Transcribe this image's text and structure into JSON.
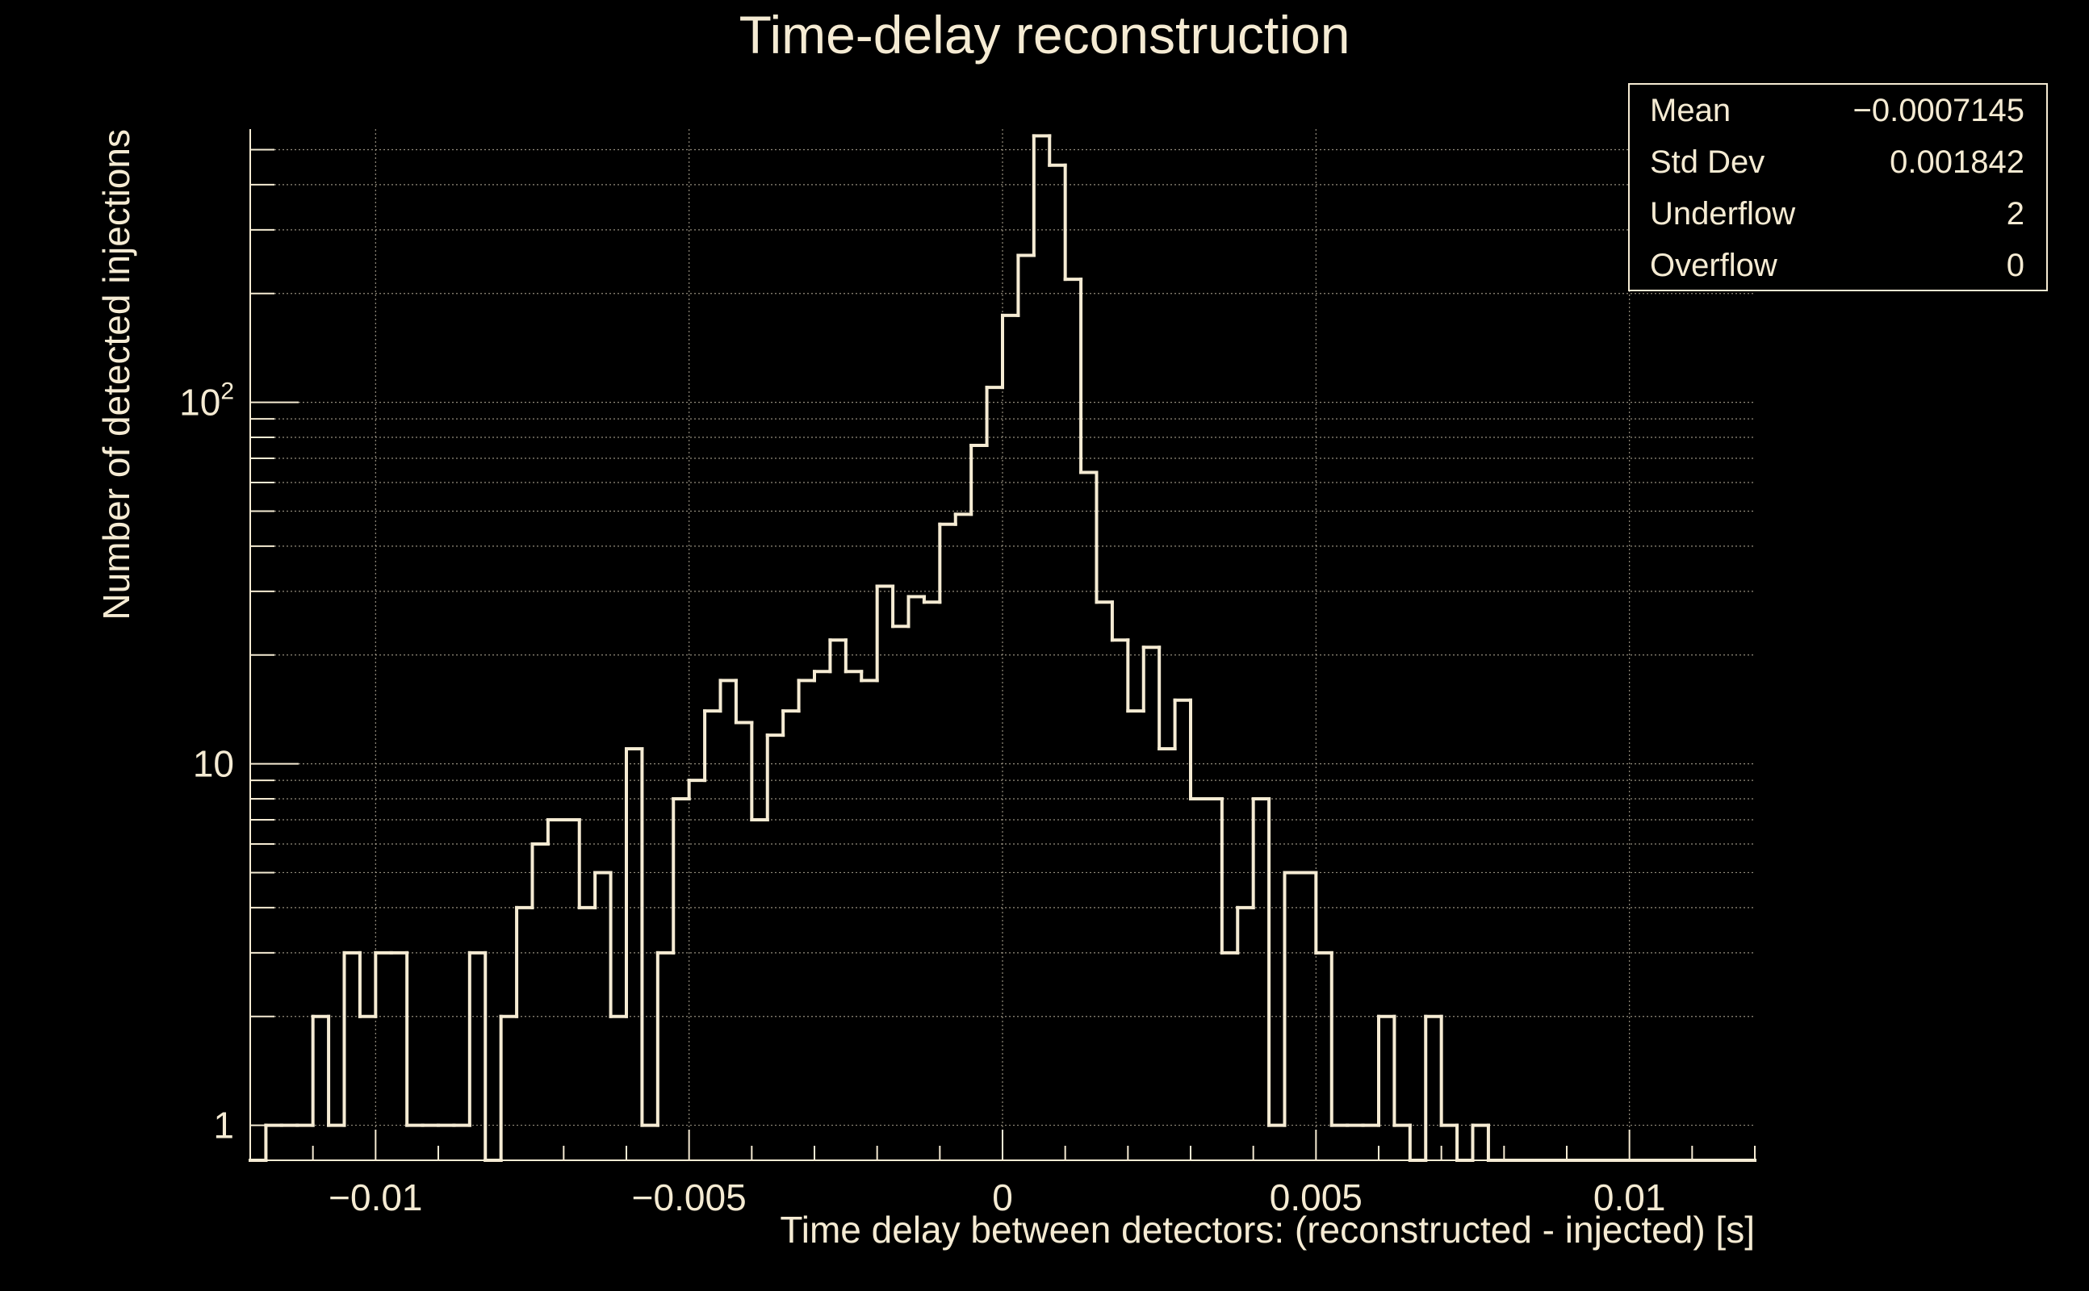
{
  "colors": {
    "background": "#000000",
    "foreground": "#f5ebd3",
    "grid": "#b8b09c"
  },
  "stats": {
    "rows": [
      {
        "label": "Mean",
        "value": "−0.0007145"
      },
      {
        "label": "Std Dev",
        "value": "0.001842"
      },
      {
        "label": "Underflow",
        "value": "2"
      },
      {
        "label": "Overflow",
        "value": "0"
      }
    ]
  },
  "chart_data": {
    "type": "histogram",
    "title": "Time-delay reconstruction",
    "xlabel": "Time delay between detectors: (reconstructed - injected) [s]",
    "ylabel": "Number of detected injections",
    "xlim": [
      -0.012,
      0.012
    ],
    "ylim": [
      0.8,
      570
    ],
    "log_y": true,
    "grid": true,
    "x_ticks": [
      {
        "value": -0.01,
        "label": "−0.01"
      },
      {
        "value": -0.005,
        "label": "−0.005"
      },
      {
        "value": 0,
        "label": "0"
      },
      {
        "value": 0.005,
        "label": "0.005"
      },
      {
        "value": 0.01,
        "label": "0.01"
      }
    ],
    "y_ticks": [
      {
        "value": 1,
        "label": "1"
      },
      {
        "value": 10,
        "label": "10"
      },
      {
        "value": 100,
        "label": "10",
        "sup": "2"
      }
    ],
    "bin_start": -0.012,
    "bin_width": 0.00025,
    "counts": [
      0,
      1,
      1,
      1,
      2,
      1,
      3,
      2,
      3,
      3,
      1,
      1,
      1,
      1,
      3,
      0,
      2,
      4,
      6,
      7,
      7,
      4,
      5,
      2,
      11,
      1,
      3,
      8,
      9,
      14,
      17,
      13,
      7,
      12,
      14,
      17,
      18,
      22,
      18,
      17,
      31,
      24,
      29,
      28,
      46,
      49,
      76,
      110,
      174,
      255,
      546,
      453,
      219,
      64,
      28,
      22,
      14,
      21,
      11,
      15,
      8,
      8,
      3,
      4,
      8,
      1,
      5,
      5,
      3,
      1,
      1,
      1,
      2,
      1,
      0,
      2,
      1,
      0,
      1,
      0,
      0,
      0,
      0,
      0,
      0,
      0,
      0,
      0,
      0,
      0,
      0,
      0,
      0,
      0,
      0,
      0
    ]
  }
}
